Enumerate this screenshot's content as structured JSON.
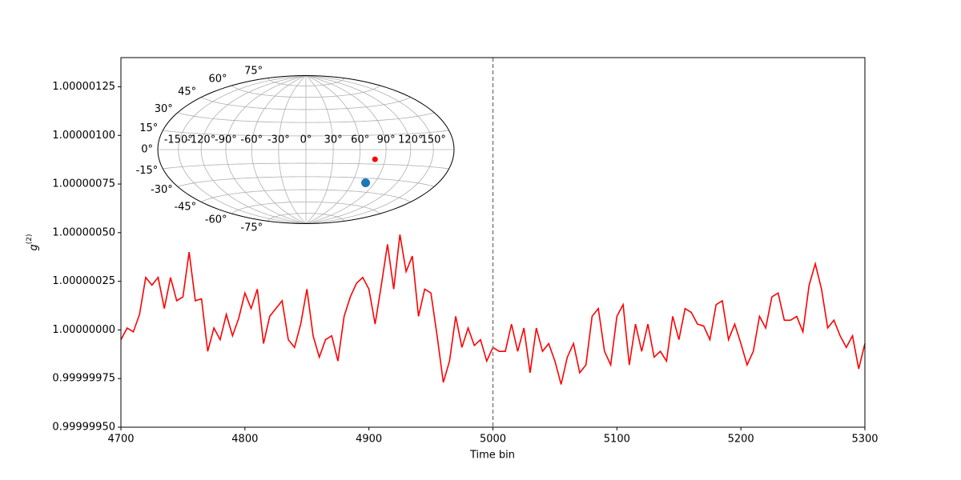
{
  "chart_data": {
    "type": "line",
    "xlabel": "Time bin",
    "ylabel": {
      "base": "g",
      "superscript": "(2)"
    },
    "x": [
      4700,
      4705,
      4710,
      4715,
      4720,
      4725,
      4730,
      4735,
      4740,
      4745,
      4750,
      4755,
      4760,
      4765,
      4770,
      4775,
      4780,
      4785,
      4790,
      4795,
      4800,
      4805,
      4810,
      4815,
      4820,
      4825,
      4830,
      4835,
      4840,
      4845,
      4850,
      4855,
      4860,
      4865,
      4870,
      4875,
      4880,
      4885,
      4890,
      4895,
      4900,
      4905,
      4910,
      4915,
      4920,
      4925,
      4930,
      4935,
      4940,
      4945,
      4950,
      4955,
      4960,
      4965,
      4970,
      4975,
      4980,
      4985,
      4990,
      4995,
      5000,
      5005,
      5010,
      5015,
      5020,
      5025,
      5030,
      5035,
      5040,
      5045,
      5050,
      5055,
      5060,
      5065,
      5070,
      5075,
      5080,
      5085,
      5090,
      5095,
      5100,
      5105,
      5110,
      5115,
      5120,
      5125,
      5130,
      5135,
      5140,
      5145,
      5150,
      5155,
      5160,
      5165,
      5170,
      5175,
      5180,
      5185,
      5190,
      5195,
      5200,
      5205,
      5210,
      5215,
      5220,
      5225,
      5230,
      5235,
      5240,
      5245,
      5250,
      5255,
      5260,
      5265,
      5270,
      5275,
      5280,
      5285,
      5290,
      5295,
      5300
    ],
    "values": [
      0.99999995,
      1.00000001,
      0.99999999,
      1.00000008,
      1.00000027,
      1.00000023,
      1.00000027,
      1.00000011,
      1.00000027,
      1.00000015,
      1.00000017,
      1.0000004,
      1.00000015,
      1.00000016,
      0.99999989,
      1.00000001,
      0.99999995,
      1.00000008,
      0.99999997,
      1.00000006,
      1.00000019,
      1.00000011,
      1.00000021,
      0.99999993,
      1.00000007,
      1.00000011,
      1.00000015,
      0.99999995,
      0.99999991,
      1.00000003,
      1.00000021,
      0.99999997,
      0.99999986,
      0.99999995,
      0.99999997,
      0.99999984,
      1.00000007,
      1.00000017,
      1.00000024,
      1.00000027,
      1.00000021,
      1.00000003,
      1.00000023,
      1.00000044,
      1.00000021,
      1.00000049,
      1.0000003,
      1.00000038,
      1.00000007,
      1.00000021,
      1.00000019,
      0.99999997,
      0.99999973,
      0.99999984,
      1.00000007,
      0.99999991,
      1.00000001,
      0.99999992,
      0.99999995,
      0.99999984,
      0.99999991,
      0.99999989,
      0.99999989,
      1.00000003,
      0.99999989,
      1.00000001,
      0.99999978,
      1.00000001,
      0.99999989,
      0.99999993,
      0.99999984,
      0.99999972,
      0.99999986,
      0.99999993,
      0.99999978,
      0.99999982,
      1.00000007,
      1.00000011,
      0.99999989,
      0.99999982,
      1.00000007,
      1.00000013,
      0.99999982,
      1.00000003,
      0.99999989,
      1.00000003,
      0.99999986,
      0.99999989,
      0.99999984,
      1.00000007,
      0.99999995,
      1.00000011,
      1.00000009,
      1.00000003,
      1.00000002,
      0.99999995,
      1.00000013,
      1.00000015,
      0.99999995,
      1.00000003,
      0.99999993,
      0.99999982,
      0.99999989,
      1.00000007,
      1.00000001,
      1.00000017,
      1.00000019,
      1.00000005,
      1.00000005,
      1.00000007,
      0.99999999,
      1.00000023,
      1.00000034,
      1.00000021,
      1.00000001,
      1.00000005,
      0.99999997,
      0.99999991,
      0.99999997,
      0.9999998,
      0.99999993
    ],
    "color": "#ff0000",
    "xlim": [
      4700,
      5300
    ],
    "ylim": [
      0.9999995,
      1.0000014
    ],
    "xticks": [
      4700,
      4800,
      4900,
      5000,
      5100,
      5200,
      5300
    ],
    "yticks": [
      {
        "value": 0.9999995,
        "label": "0.99999950"
      },
      {
        "value": 0.99999975,
        "label": "0.99999975"
      },
      {
        "value": 1.0,
        "label": "1.00000000"
      },
      {
        "value": 1.00000025,
        "label": "1.00000025"
      },
      {
        "value": 1.0000005,
        "label": "1.00000050"
      },
      {
        "value": 1.00000075,
        "label": "1.00000075"
      },
      {
        "value": 1.000001,
        "label": "1.00000100"
      },
      {
        "value": 1.00000125,
        "label": "1.00000125"
      }
    ],
    "vline": {
      "value": 5000,
      "color": "#808080"
    },
    "inset": {
      "type": "hammer",
      "grid": true,
      "lon_ticks": [
        {
          "value": -150,
          "label": "-150°"
        },
        {
          "value": -120,
          "label": "-120°"
        },
        {
          "value": -90,
          "label": "-90°"
        },
        {
          "value": -60,
          "label": "-60°"
        },
        {
          "value": -30,
          "label": "-30°"
        },
        {
          "value": 0,
          "label": "0°"
        },
        {
          "value": 30,
          "label": "30°"
        },
        {
          "value": 60,
          "label": "60°"
        },
        {
          "value": 90,
          "label": "90°"
        },
        {
          "value": 120,
          "label": "120°"
        },
        {
          "value": 150,
          "label": "150°"
        }
      ],
      "lat_ticks": [
        {
          "value": -75,
          "label": "-75°"
        },
        {
          "value": -60,
          "label": "-60°"
        },
        {
          "value": -45,
          "label": "-45°"
        },
        {
          "value": -30,
          "label": "-30°"
        },
        {
          "value": -15,
          "label": "-15°"
        },
        {
          "value": 0,
          "label": "0°"
        },
        {
          "value": 15,
          "label": "15°"
        },
        {
          "value": 30,
          "label": "30°"
        },
        {
          "value": 45,
          "label": "45°"
        },
        {
          "value": 60,
          "label": "60°"
        },
        {
          "value": 75,
          "label": "75°"
        }
      ],
      "points": [
        {
          "lon": 78,
          "lat": -10,
          "color": "#ff0000"
        },
        {
          "lon": 78,
          "lat": -35,
          "color": "#1f77b4"
        }
      ]
    }
  }
}
